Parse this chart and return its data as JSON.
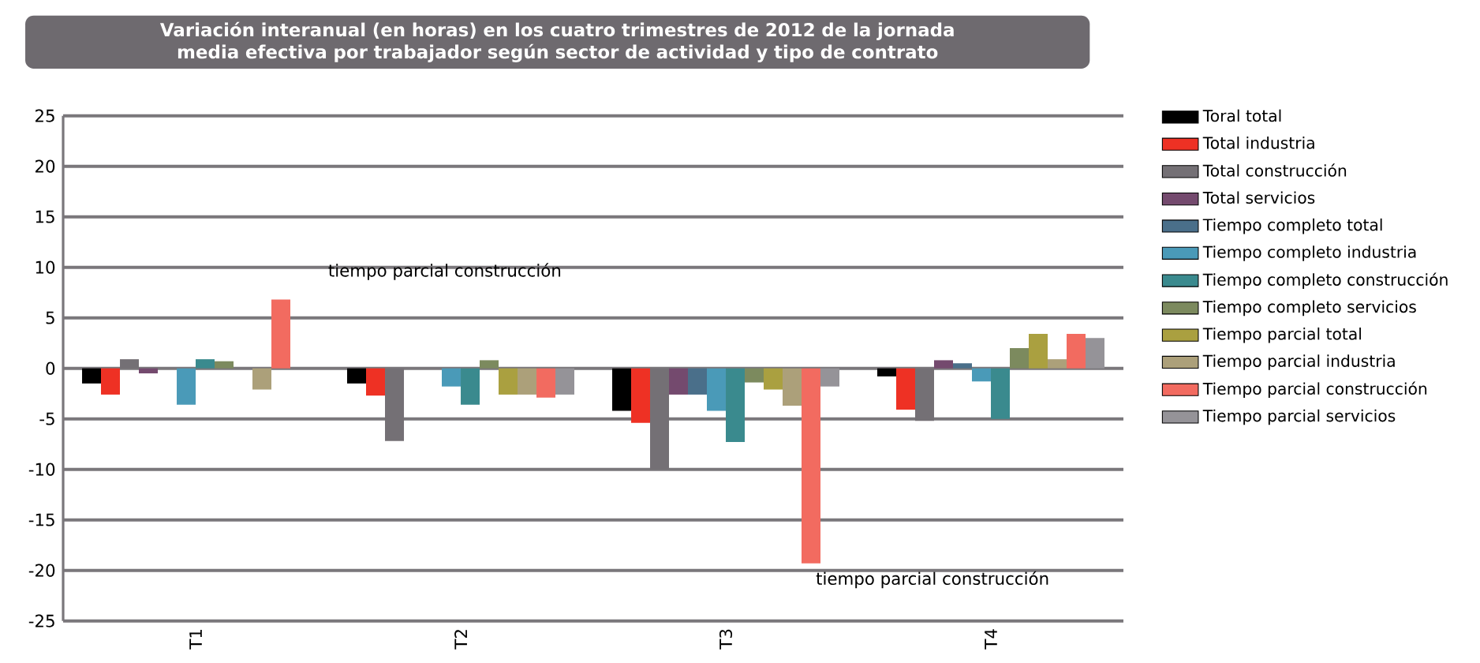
{
  "chart_data": {
    "type": "bar",
    "title": "Variación interanual (en horas) en los cuatro trimestres de 2012 de la jornada media efectiva por trabajador según sector de actividad y tipo de contrato",
    "categories": [
      "T1",
      "T2",
      "T3",
      "T4"
    ],
    "series": [
      {
        "name": "Toral total",
        "color": "#000000",
        "values": [
          -1.5,
          -1.5,
          -4.2,
          -0.8
        ]
      },
      {
        "name": "Total industria",
        "color": "#ee3124",
        "values": [
          -2.6,
          -2.7,
          -5.4,
          -4.1
        ]
      },
      {
        "name": "Total construcción",
        "color": "#747075",
        "values": [
          0.9,
          -7.2,
          -10,
          -5.2
        ]
      },
      {
        "name": "Total servicios",
        "color": "#744a6e",
        "values": [
          -0.5,
          null,
          -2.6,
          0.8
        ]
      },
      {
        "name": "Tiempo completo total",
        "color": "#4a6f8a",
        "values": [
          null,
          null,
          -2.6,
          0.5
        ]
      },
      {
        "name": "Tiempo completo industria",
        "color": "#4a9ab8",
        "values": [
          -3.6,
          -1.8,
          -4.2,
          -1.3
        ]
      },
      {
        "name": "Tiempo completo construcción",
        "color": "#3a8a8e",
        "values": [
          0.9,
          -3.6,
          -7.3,
          -5
        ]
      },
      {
        "name": "Tiempo completo servicios",
        "color": "#7c8a5e",
        "values": [
          0.7,
          0.8,
          -1.4,
          2
        ]
      },
      {
        "name": "Tiempo parcial total",
        "color": "#aaa040",
        "values": [
          null,
          -2.6,
          -2.1,
          3.4
        ]
      },
      {
        "name": "Tiempo parcial industria",
        "color": "#aca07a",
        "values": [
          -2.1,
          -2.6,
          -3.7,
          0.9
        ]
      },
      {
        "name": "Tiempo parcial construcción",
        "color": "#f26b60",
        "values": [
          6.8,
          -2.9,
          -19.3,
          3.4
        ]
      },
      {
        "name": "Tiempo parcial servicios",
        "color": "#959398",
        "values": [
          null,
          -2.6,
          -1.8,
          3
        ]
      }
    ],
    "ylim": [
      -25,
      25
    ],
    "yticks": [
      -25,
      -20,
      -15,
      -10,
      -5,
      0,
      5,
      10,
      15,
      20,
      25
    ],
    "grid": "y",
    "legend": "right",
    "annotations": [
      "tiempo parcial construcción",
      "tiempo parcial construcción"
    ]
  }
}
